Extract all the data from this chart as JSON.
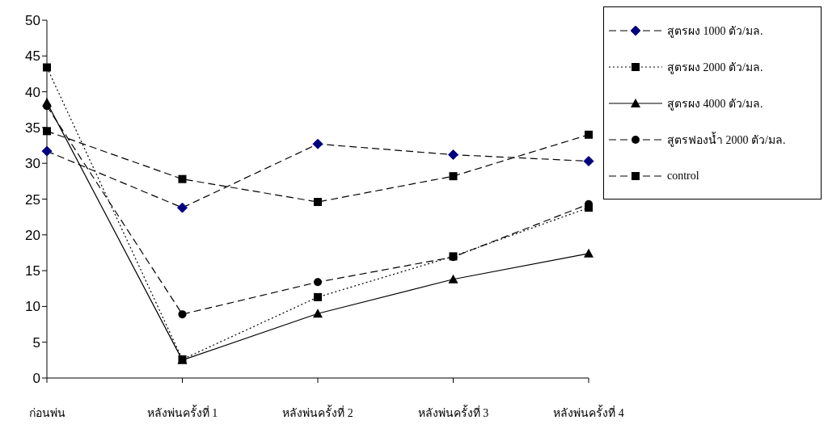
{
  "chart_data": {
    "type": "line",
    "categories": [
      "ก่อนพ่น",
      "หลังพ่นครั้งที่ 1",
      "หลังพ่นครั้งที่ 2",
      "หลังพ่นครั้งที่ 3",
      "หลังพ่นครั้งที่ 4"
    ],
    "series": [
      {
        "name": "สูตรผง 1000 ตัว/มล.",
        "color": "#000080",
        "marker": "diamond",
        "line_style": "dashed",
        "values": [
          31.7,
          23.8,
          32.7,
          31.2,
          30.3
        ]
      },
      {
        "name": "สูตรผง 2000 ตัว/มล.",
        "color": "#000000",
        "marker": "square",
        "line_style": "dotted",
        "values": [
          43.4,
          2.6,
          11.3,
          17.0,
          23.8
        ]
      },
      {
        "name": "สูตรผง 4000 ตัว/มล.",
        "color": "#000000",
        "marker": "triangle",
        "line_style": "solid",
        "values": [
          38.5,
          2.5,
          9.0,
          13.8,
          17.4
        ]
      },
      {
        "name": "สูตรฟองน้ำ 2000 ตัว/มล.",
        "color": "#000000",
        "marker": "circle",
        "line_style": "dashed",
        "values": [
          38.0,
          8.9,
          13.4,
          16.9,
          24.3
        ]
      },
      {
        "name": "control",
        "color": "#000000",
        "marker": "square",
        "line_style": "dashed",
        "values": [
          34.5,
          27.8,
          24.6,
          28.2,
          34.0
        ]
      }
    ],
    "ylim": [
      0,
      50
    ],
    "yticks": [
      0,
      5,
      10,
      15,
      20,
      25,
      30,
      35,
      40,
      45,
      50
    ],
    "legend": "top right"
  }
}
